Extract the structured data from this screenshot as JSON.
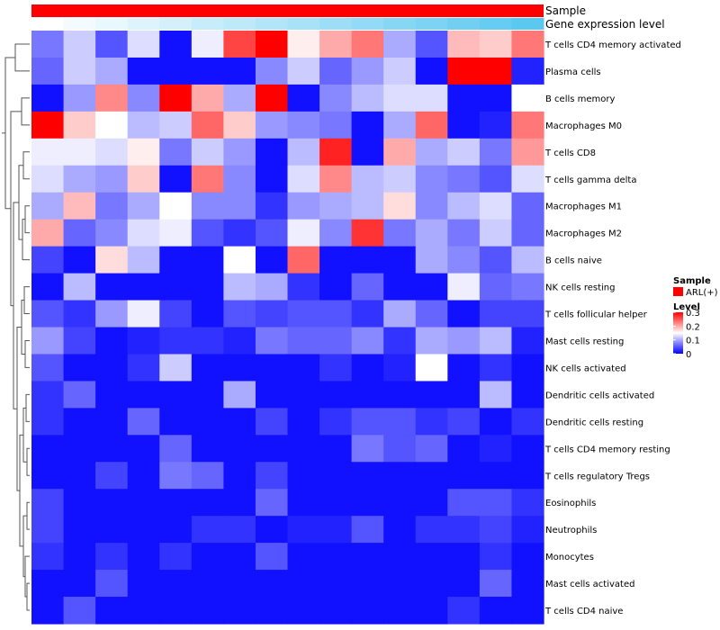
{
  "chart_data": {
    "type": "heatmap",
    "title": "",
    "annotations": [
      {
        "name": "Sample",
        "color": "#ff0000"
      },
      {
        "name": "Gene expression level",
        "colors": [
          "#ffffff",
          "#5bc8f0"
        ]
      }
    ],
    "rows": [
      "T cells CD4 memory activated",
      "Plasma cells",
      "B cells memory",
      "Macrophages M0",
      "T cells CD8",
      "T cells gamma delta",
      "Macrophages M1",
      "Macrophages M2",
      "B cells naive",
      "NK cells resting",
      "T cells follicular helper",
      "Mast cells resting",
      "NK cells activated",
      "Dendritic cells activated",
      "Dendritic cells resting",
      "T cells CD4 memory resting",
      "T cells regulatory  Tregs",
      "Eosinophils",
      "Neutrophils",
      "Monocytes",
      "Mast cells activated",
      "T cells CD4 naive"
    ],
    "n_columns": 16,
    "values": [
      [
        0.07,
        0.12,
        0.05,
        0.13,
        0.01,
        0.14,
        0.26,
        0.31,
        0.16,
        0.2,
        0.23,
        0.1,
        0.05,
        0.19,
        0.18,
        0.23
      ],
      [
        0.06,
        0.12,
        0.1,
        0.01,
        0.01,
        0.01,
        0.01,
        0.08,
        0.12,
        0.06,
        0.09,
        0.12,
        0.01,
        0.31,
        0.32,
        0.02
      ],
      [
        0.01,
        0.09,
        0.22,
        0.08,
        0.31,
        0.2,
        0.1,
        0.31,
        0.01,
        0.08,
        0.11,
        0.13,
        0.13,
        0.01,
        0.01,
        0.15
      ],
      [
        0.3,
        0.18,
        0.15,
        0.11,
        0.12,
        0.24,
        0.18,
        0.09,
        0.08,
        0.07,
        0.01,
        0.1,
        0.24,
        0.01,
        0.02,
        0.23
      ],
      [
        0.14,
        0.14,
        0.13,
        0.16,
        0.07,
        0.12,
        0.09,
        0.01,
        0.11,
        0.28,
        0.01,
        0.2,
        0.1,
        0.12,
        0.07,
        0.21
      ],
      [
        0.13,
        0.1,
        0.09,
        0.18,
        0.01,
        0.23,
        0.08,
        0.01,
        0.13,
        0.22,
        0.11,
        0.12,
        0.08,
        0.07,
        0.05,
        0.13
      ],
      [
        0.1,
        0.19,
        0.07,
        0.1,
        0.15,
        0.08,
        0.08,
        0.03,
        0.09,
        0.1,
        0.11,
        0.17,
        0.08,
        0.11,
        0.13,
        0.06
      ],
      [
        0.2,
        0.06,
        0.08,
        0.13,
        0.14,
        0.05,
        0.03,
        0.05,
        0.14,
        0.08,
        0.27,
        0.07,
        0.1,
        0.07,
        0.12,
        0.06
      ],
      [
        0.04,
        0.01,
        0.17,
        0.11,
        0.01,
        0.01,
        0.15,
        0.01,
        0.24,
        0.01,
        0.01,
        0.01,
        0.1,
        0.08,
        0.05,
        0.11
      ],
      [
        0.01,
        0.11,
        0.01,
        0.01,
        0.01,
        0.01,
        0.11,
        0.1,
        0.03,
        0.01,
        0.06,
        0.01,
        0.01,
        0.14,
        0.06,
        0.07
      ],
      [
        0.05,
        0.03,
        0.09,
        0.14,
        0.04,
        0.01,
        0.05,
        0.04,
        0.05,
        0.05,
        0.03,
        0.1,
        0.06,
        0.01,
        0.04,
        0.04
      ],
      [
        0.09,
        0.04,
        0.01,
        0.02,
        0.03,
        0.03,
        0.02,
        0.07,
        0.06,
        0.06,
        0.08,
        0.03,
        0.1,
        0.09,
        0.11,
        0.02
      ],
      [
        0.05,
        0.01,
        0.01,
        0.03,
        0.12,
        0.01,
        0.01,
        0.01,
        0.01,
        0.03,
        0.01,
        0.02,
        0.15,
        0.01,
        0.03,
        0.01
      ],
      [
        0.03,
        0.06,
        0.01,
        0.01,
        0.01,
        0.01,
        0.1,
        0.01,
        0.01,
        0.01,
        0.01,
        0.01,
        0.01,
        0.01,
        0.11,
        0.01
      ],
      [
        0.03,
        0.01,
        0.01,
        0.06,
        0.01,
        0.01,
        0.01,
        0.04,
        0.01,
        0.03,
        0.05,
        0.05,
        0.03,
        0.04,
        0.01,
        0.03
      ],
      [
        0.01,
        0.01,
        0.01,
        0.01,
        0.06,
        0.01,
        0.01,
        0.01,
        0.01,
        0.01,
        0.07,
        0.05,
        0.06,
        0.01,
        0.02,
        0.01
      ],
      [
        0.01,
        0.01,
        0.04,
        0.01,
        0.07,
        0.06,
        0.01,
        0.04,
        0.01,
        0.01,
        0.01,
        0.01,
        0.01,
        0.01,
        0.01,
        0.01
      ],
      [
        0.04,
        0.01,
        0.01,
        0.01,
        0.01,
        0.01,
        0.01,
        0.06,
        0.01,
        0.01,
        0.01,
        0.01,
        0.01,
        0.05,
        0.05,
        0.03
      ],
      [
        0.04,
        0.01,
        0.01,
        0.01,
        0.01,
        0.03,
        0.03,
        0.01,
        0.02,
        0.02,
        0.05,
        0.01,
        0.03,
        0.03,
        0.04,
        0.02
      ],
      [
        0.03,
        0.01,
        0.03,
        0.01,
        0.03,
        0.01,
        0.01,
        0.05,
        0.01,
        0.01,
        0.01,
        0.01,
        0.01,
        0.01,
        0.03,
        0.01
      ],
      [
        0.01,
        0.01,
        0.05,
        0.01,
        0.01,
        0.01,
        0.01,
        0.01,
        0.01,
        0.01,
        0.01,
        0.01,
        0.01,
        0.01,
        0.06,
        0.01
      ],
      [
        0.01,
        0.05,
        0.01,
        0.01,
        0.01,
        0.01,
        0.01,
        0.01,
        0.01,
        0.01,
        0.01,
        0.01,
        0.01,
        0.03,
        0.01,
        0.01
      ]
    ],
    "legend": {
      "sample_title": "Sample",
      "sample_entry": "ARL(+)",
      "level_title": "Level",
      "level_ticks": [
        "0.3",
        "0.2",
        "0.1",
        "0"
      ],
      "range": [
        0,
        0.3
      ],
      "color_low": "#0000ff",
      "color_mid": "#ffffff",
      "color_high": "#ff0000"
    }
  }
}
